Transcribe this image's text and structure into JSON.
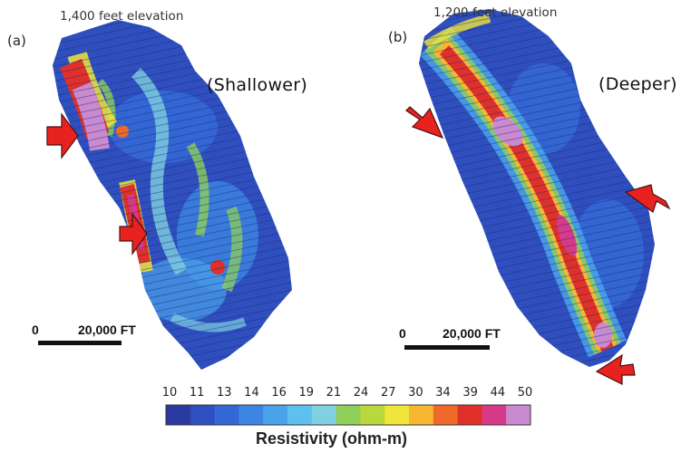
{
  "panel_a": {
    "label": "(a)",
    "elevation": "1,400 feet elevation",
    "depth_label": "(Shallower)",
    "scale_label": "20,000 FT",
    "scale_zero": "0"
  },
  "panel_b": {
    "label": "(b)",
    "elevation": "1,200 feet elevation",
    "depth_label": "(Deeper)",
    "scale_label": "20,000 FT",
    "scale_zero": "0"
  },
  "colorbar": {
    "title": "Resistivity (ohm-m)",
    "ticks": [
      "10",
      "11",
      "13",
      "14",
      "16",
      "19",
      "21",
      "24",
      "27",
      "30",
      "34",
      "39",
      "44",
      "50"
    ],
    "colors": [
      "#2b3a9e",
      "#2f4fbf",
      "#3468d6",
      "#3c86e2",
      "#4aa3ea",
      "#5ec0ef",
      "#7fd0e0",
      "#8fcf5a",
      "#b8d83c",
      "#f0e53a",
      "#f7b731",
      "#ef6a2a",
      "#e0302a",
      "#d83a8a",
      "#c98ad0"
    ]
  },
  "colors": {
    "arrow": "#e8231f",
    "arrow_edge": "#4a1010",
    "base": "#2f4fbf",
    "high": "#e0302a",
    "very_high": "#c98ad0"
  }
}
